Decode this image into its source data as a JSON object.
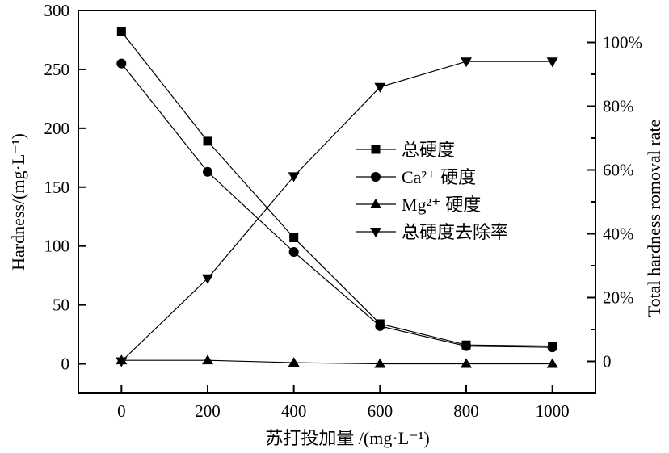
{
  "chart_data": {
    "type": "line",
    "xlabel": "苏打投加量 /(mg·L⁻¹)",
    "ylabel": "Hardness/(mg·L⁻¹)",
    "ylabel_right": "Total hardness romoval rate",
    "x": [
      0,
      200,
      400,
      600,
      800,
      1000
    ],
    "xlim": [
      -100,
      1100
    ],
    "ylim": [
      -25,
      300
    ],
    "ylim_right": [
      -10,
      110
    ],
    "x_ticks": [
      "0",
      "200",
      "400",
      "600",
      "800",
      "1000"
    ],
    "y_ticks": [
      "0",
      "50",
      "100",
      "150",
      "200",
      "250",
      "300"
    ],
    "y_ticks_right": [
      "0",
      "20%",
      "40%",
      "60%",
      "80%",
      "100%"
    ],
    "grid": false,
    "legend_position": "center-right",
    "series": [
      {
        "name": "总硬度",
        "axis": "left",
        "marker": "square",
        "values": [
          282,
          189,
          107,
          34,
          16,
          15
        ]
      },
      {
        "name": "Ca²⁺ 硬度",
        "axis": "left",
        "marker": "circle",
        "values": [
          255,
          163,
          95,
          32,
          15,
          14
        ]
      },
      {
        "name": "Mg²⁺ 硬度",
        "axis": "left",
        "marker": "triangle-up",
        "values": [
          3,
          3,
          1,
          0,
          0,
          0
        ]
      },
      {
        "name": "总硬度去除率",
        "axis": "right",
        "marker": "triangle-down",
        "values": [
          0,
          26,
          58,
          86,
          94,
          94
        ]
      }
    ]
  }
}
